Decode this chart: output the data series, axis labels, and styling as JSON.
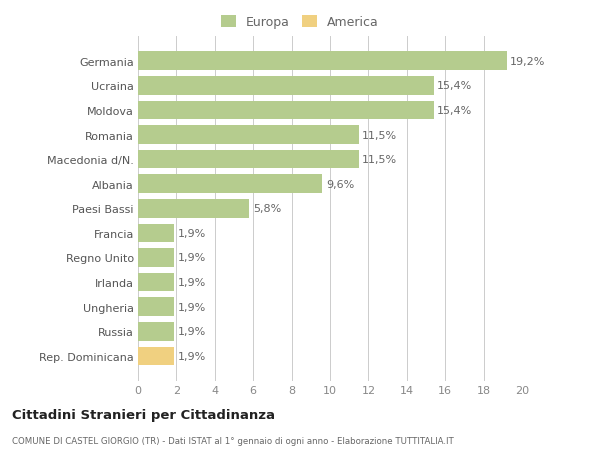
{
  "categories": [
    "Rep. Dominicana",
    "Russia",
    "Ungheria",
    "Irlanda",
    "Regno Unito",
    "Francia",
    "Paesi Bassi",
    "Albania",
    "Macedonia d/N.",
    "Romania",
    "Moldova",
    "Ucraina",
    "Germania"
  ],
  "values": [
    1.9,
    1.9,
    1.9,
    1.9,
    1.9,
    1.9,
    5.8,
    9.6,
    11.5,
    11.5,
    15.4,
    15.4,
    19.2
  ],
  "colors": [
    "#f0d080",
    "#b5cc8e",
    "#b5cc8e",
    "#b5cc8e",
    "#b5cc8e",
    "#b5cc8e",
    "#b5cc8e",
    "#b5cc8e",
    "#b5cc8e",
    "#b5cc8e",
    "#b5cc8e",
    "#b5cc8e",
    "#b5cc8e"
  ],
  "labels": [
    "1,9%",
    "1,9%",
    "1,9%",
    "1,9%",
    "1,9%",
    "1,9%",
    "5,8%",
    "9,6%",
    "11,5%",
    "11,5%",
    "15,4%",
    "15,4%",
    "19,2%"
  ],
  "europa_color": "#b5cc8e",
  "america_color": "#f0d080",
  "title": "Cittadini Stranieri per Cittadinanza",
  "subtitle": "COMUNE DI CASTEL GIORGIO (TR) - Dati ISTAT al 1° gennaio di ogni anno - Elaborazione TUTTITALIA.IT",
  "xlim": [
    0,
    20
  ],
  "xticks": [
    0,
    2,
    4,
    6,
    8,
    10,
    12,
    14,
    16,
    18,
    20
  ],
  "background_color": "#ffffff",
  "bar_height": 0.75,
  "legend_europa": "Europa",
  "legend_america": "America"
}
